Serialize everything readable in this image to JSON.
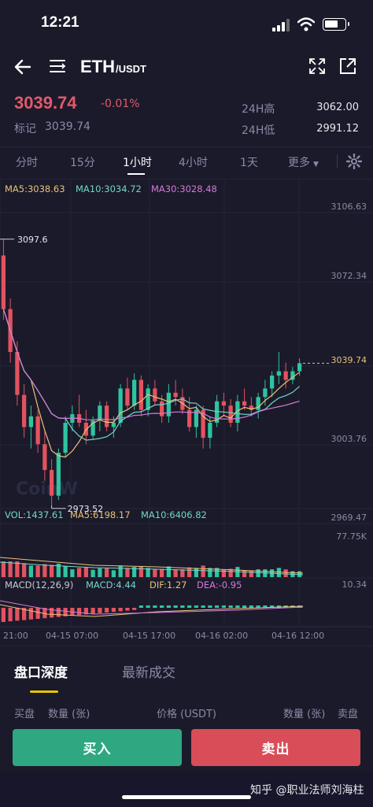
{
  "status_bar": {
    "time": "12:21"
  },
  "header": {
    "base": "ETH",
    "quote": "/USDT"
  },
  "ticker": {
    "last_price": "3039.74",
    "change": "-0.01%",
    "mark_label": "标记",
    "mark_price": "3039.74",
    "high_label": "24H高",
    "high_value": "3062.00",
    "low_label": "24H低",
    "low_value": "2991.12"
  },
  "timeframes": [
    "分时",
    "15分",
    "1小时",
    "4小时",
    "1天",
    "更多"
  ],
  "active_timeframe": "1小时",
  "indicators": {
    "ma5": "MA5:3038.63",
    "ma10": "MA10:3034.72",
    "ma30": "MA30:3028.48",
    "vol": "VOL:1437.61",
    "vol_ma5": "MA5:6198.17",
    "vol_ma10": "MA10:6406.82",
    "macd": "MACD(12,26,9)",
    "macd_val": "MACD:4.44",
    "dif": "DIF:1.27",
    "dea": "DEA:-0.95"
  },
  "chart_data": {
    "type": "candlestick",
    "price_axis": [
      "3106.63",
      "3072.34",
      "3039.74",
      "3003.76",
      "2969.47"
    ],
    "vol_axis": "77.75K",
    "macd_axis": "10.34",
    "annotations": {
      "high": "3097.6",
      "low": "2973.52",
      "last": "3039.74"
    },
    "x_labels": [
      "21:00",
      "04-15 07:00",
      "04-15 17:00",
      "04-16 02:00",
      "04-16 12:00"
    ],
    "watermark": "CoinW",
    "colors": {
      "up": "#2fc4a0",
      "down": "#e2535f",
      "ma5": "#e7c37a",
      "ma10": "#73d6c9",
      "ma30": "#d47ad9"
    },
    "candles": [
      [
        3090,
        3097.6,
        3060,
        3065
      ],
      [
        3065,
        3070,
        3040,
        3045
      ],
      [
        3045,
        3050,
        3020,
        3025
      ],
      [
        3025,
        3030,
        3005,
        3010
      ],
      [
        3010,
        3020,
        3000,
        3015
      ],
      [
        3015,
        3018,
        2998,
        3002
      ],
      [
        3002,
        3008,
        2985,
        2990
      ],
      [
        2990,
        2995,
        2973.52,
        2978
      ],
      [
        2978,
        3000,
        2976,
        2998
      ],
      [
        2998,
        3015,
        2996,
        3012
      ],
      [
        3012,
        3020,
        3008,
        3016
      ],
      [
        3016,
        3025,
        3010,
        3012
      ],
      [
        3012,
        3018,
        3002,
        3006
      ],
      [
        3006,
        3015,
        3004,
        3013
      ],
      [
        3013,
        3022,
        3008,
        3020
      ],
      [
        3020,
        3022,
        3008,
        3010
      ],
      [
        3010,
        3015,
        3005,
        3012
      ],
      [
        3012,
        3030,
        3010,
        3028
      ],
      [
        3028,
        3033,
        3018,
        3020
      ],
      [
        3020,
        3035,
        3018,
        3032
      ],
      [
        3032,
        3034,
        3015,
        3018
      ],
      [
        3018,
        3030,
        3015,
        3028
      ],
      [
        3028,
        3032,
        3020,
        3022
      ],
      [
        3022,
        3025,
        3012,
        3015
      ],
      [
        3015,
        3030,
        3012,
        3026
      ],
      [
        3026,
        3032,
        3020,
        3024
      ],
      [
        3024,
        3028,
        3016,
        3018
      ],
      [
        3018,
        3024,
        3008,
        3010
      ],
      [
        3010,
        3020,
        3005,
        3018
      ],
      [
        3018,
        3020,
        3000,
        3005
      ],
      [
        3005,
        3015,
        3000,
        3012
      ],
      [
        3012,
        3025,
        3010,
        3022
      ],
      [
        3022,
        3026,
        3015,
        3020
      ],
      [
        3020,
        3023,
        3010,
        3012
      ],
      [
        3012,
        3025,
        3008,
        3022
      ],
      [
        3022,
        3028,
        3018,
        3020
      ],
      [
        3020,
        3024,
        3015,
        3018
      ],
      [
        3018,
        3026,
        3014,
        3024
      ],
      [
        3024,
        3032,
        3020,
        3028
      ],
      [
        3028,
        3036,
        3024,
        3034
      ],
      [
        3034,
        3045,
        3030,
        3036
      ],
      [
        3036,
        3040,
        3028,
        3032
      ],
      [
        3032,
        3038,
        3030,
        3036
      ],
      [
        3036,
        3042,
        3034,
        3039.74
      ]
    ]
  },
  "bottom_tabs": [
    "盘口深度",
    "最新成交"
  ],
  "orderbook_headers": {
    "buy": "买盘",
    "qty_left": "数量 (张)",
    "price": "价格 (USDT)",
    "qty_right": "数量 (张)",
    "sell": "卖盘"
  },
  "actions": {
    "buy": "买入",
    "sell": "卖出"
  },
  "watermark": "知乎 @职业法师刘海柱"
}
